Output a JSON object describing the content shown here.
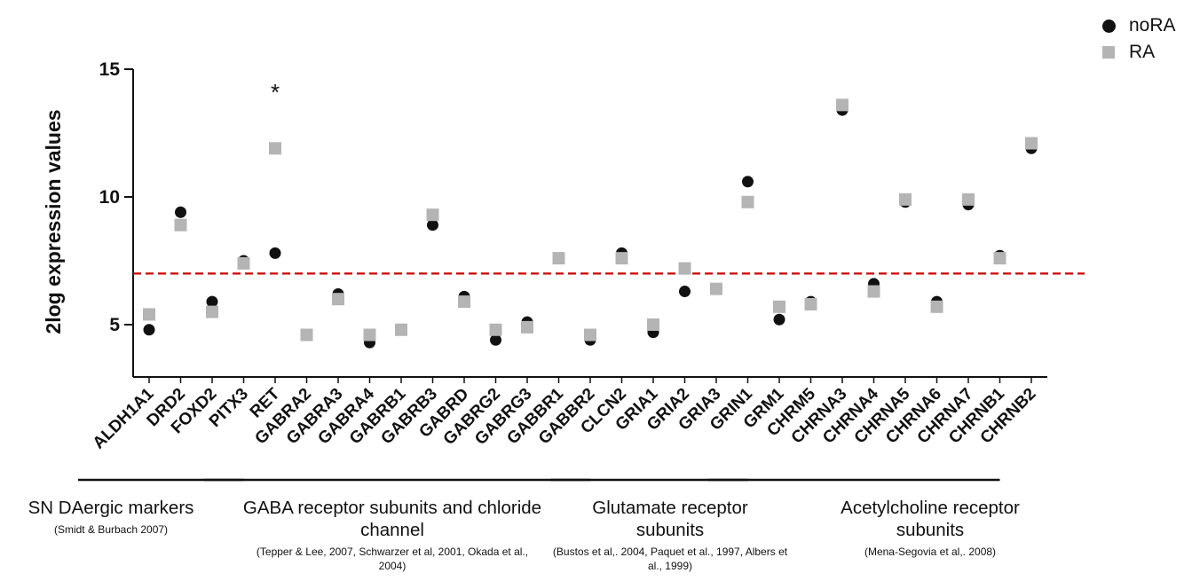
{
  "chart_data": {
    "type": "scatter",
    "ylabel": "2log expression values",
    "xlabel": "",
    "ylim": [
      3,
      15
    ],
    "yticks": [
      5,
      10,
      15
    ],
    "threshold": 7,
    "threshold_color": "#cc0000",
    "categories": [
      "ALDH1A1",
      "DRD2",
      "FOXD2",
      "PITX3",
      "RET",
      "GABRA2",
      "GABRA3",
      "GABRA4",
      "GABRB1",
      "GABRB3",
      "GABRD",
      "GABRG2",
      "GABRG3",
      "GABBR1",
      "GABBR2",
      "CLCN2",
      "GRIA1",
      "GRIA2",
      "GRIA3",
      "GRIN1",
      "GRM1",
      "CHRM5",
      "CHRNA3",
      "CHRNA4",
      "CHRNA5",
      "CHRNA6",
      "CHRNA7",
      "CHRNB1",
      "CHRNB2"
    ],
    "series": [
      {
        "name": "noRA",
        "marker": "circle",
        "color": "#111111",
        "values": [
          4.8,
          9.4,
          5.9,
          7.5,
          7.8,
          4.6,
          6.2,
          4.3,
          4.8,
          8.9,
          6.1,
          4.4,
          5.1,
          7.6,
          4.4,
          7.8,
          4.7,
          6.3,
          6.4,
          10.6,
          5.2,
          5.9,
          13.4,
          6.6,
          9.8,
          5.9,
          9.7,
          7.7,
          11.9
        ]
      },
      {
        "name": "RA",
        "marker": "square",
        "color": "#b4b4b4",
        "values": [
          5.4,
          8.9,
          5.5,
          7.4,
          11.9,
          4.6,
          6.0,
          4.6,
          4.8,
          9.3,
          5.9,
          4.8,
          4.9,
          7.6,
          4.6,
          7.6,
          5.0,
          7.2,
          6.4,
          9.8,
          5.7,
          5.8,
          13.6,
          6.3,
          9.9,
          5.7,
          9.9,
          7.6,
          12.1
        ]
      }
    ],
    "annotations": [
      {
        "text": "*",
        "category": "RET",
        "y": 14.2
      }
    ],
    "groups": [
      {
        "title": "SN DAergic markers",
        "ref": "(Smidt & Burbach 2007)",
        "from": "ALDH1A1",
        "to": "PITX3"
      },
      {
        "title": "GABA receptor subunits and chloride channel",
        "ref": "(Tepper & Lee, 2007, Schwarzer et al, 2001, Okada et al., 2004)",
        "from": "RET",
        "to": "GABBR2"
      },
      {
        "title": "Glutamate receptor subunits",
        "ref": "(Bustos et al,. 2004, Paquet et al., 1997, Albers et al., 1999)",
        "from": "CLCN2",
        "to": "GRIN1"
      },
      {
        "title": "Acetylcholine receptor subunits",
        "ref": "(Mena-Segovia et al,. 2008)",
        "from": "GRM1",
        "to": "CHRNB1"
      }
    ]
  }
}
